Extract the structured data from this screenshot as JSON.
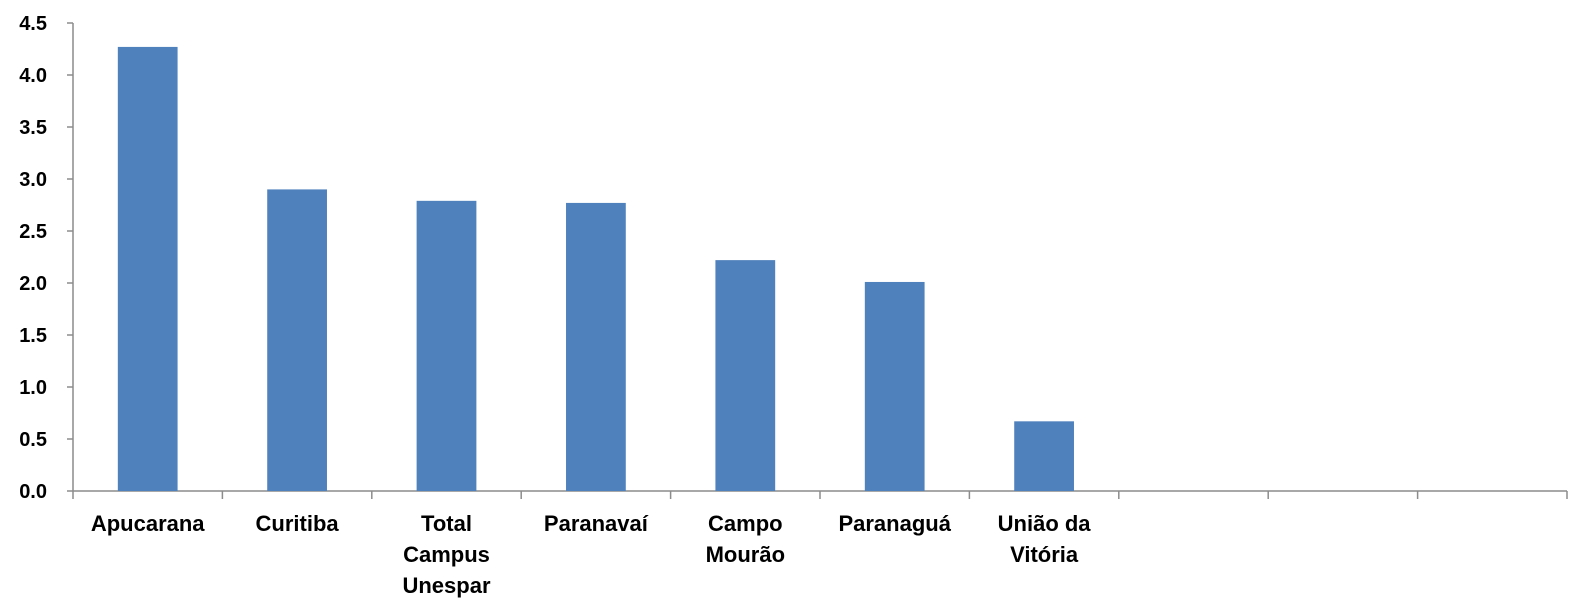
{
  "chart_data": {
    "type": "bar",
    "categories": [
      [
        "Apucarana"
      ],
      [
        "Curitiba"
      ],
      [
        "Total",
        "Campus",
        "Unespar"
      ],
      [
        "Paranavaí"
      ],
      [
        "Campo",
        "Mourão"
      ],
      [
        "Paranaguá"
      ],
      [
        "União da",
        "Vitória"
      ],
      [
        ""
      ],
      [
        ""
      ],
      [
        ""
      ]
    ],
    "values": [
      4.27,
      2.9,
      2.79,
      2.77,
      2.22,
      2.01,
      0.67,
      null,
      null,
      null
    ],
    "yticks": [
      "0.0",
      "0.5",
      "1.0",
      "1.5",
      "2.0",
      "2.5",
      "3.0",
      "3.5",
      "4.0",
      "4.5"
    ],
    "ylim": [
      0,
      4.5
    ],
    "bar_color": "#4f81bd",
    "grid": false,
    "legend": "none"
  }
}
